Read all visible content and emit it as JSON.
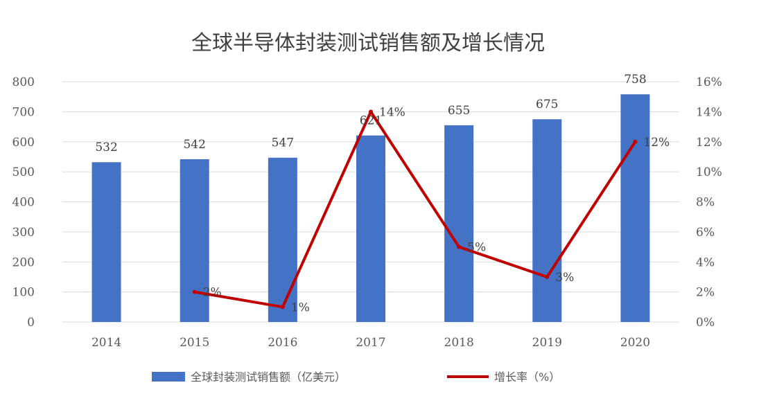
{
  "chart_data": {
    "type": "bar",
    "title": "全球半导体封装测试销售额及增长情况",
    "categories": [
      "2014",
      "2015",
      "2016",
      "2017",
      "2018",
      "2019",
      "2020"
    ],
    "series": [
      {
        "name": "全球封装测试销售额（亿美元）",
        "type": "bar",
        "axis": "left",
        "values": [
          532,
          542,
          547,
          621,
          655,
          675,
          758
        ],
        "labels": [
          "532",
          "542",
          "547",
          "621",
          "655",
          "675",
          "758"
        ],
        "color": "#4472C4"
      },
      {
        "name": "增长率（%）",
        "type": "line",
        "axis": "right",
        "values": [
          null,
          2,
          1,
          14,
          5,
          3,
          12
        ],
        "labels": [
          "",
          "2%",
          "1%",
          "14%",
          "5%",
          "3%",
          "12%"
        ],
        "color": "#C00000"
      }
    ],
    "y_left": {
      "min": 0,
      "max": 800,
      "ticks": [
        "0",
        "100",
        "200",
        "300",
        "400",
        "500",
        "600",
        "700",
        "800"
      ]
    },
    "y_right": {
      "min": 0,
      "max": 16,
      "ticks": [
        "0%",
        "2%",
        "4%",
        "6%",
        "8%",
        "10%",
        "12%",
        "14%",
        "16%"
      ]
    },
    "grid": true,
    "legend_position": "bottom"
  }
}
